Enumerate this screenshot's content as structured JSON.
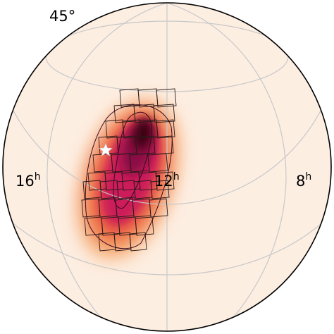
{
  "labels": {
    "dec": "45°",
    "ra": [
      {
        "hour": "16",
        "unit": "h"
      },
      {
        "hour": "12",
        "unit": "h"
      },
      {
        "hour": "8",
        "unit": "h"
      }
    ]
  }
}
